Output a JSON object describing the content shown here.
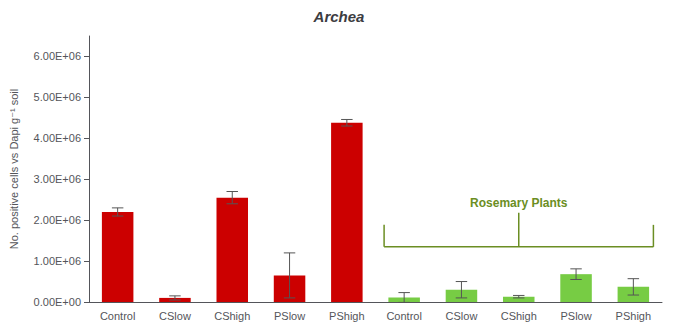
{
  "chart_data": {
    "type": "bar",
    "title": "Archea",
    "ylabel": "No. positive cells vs Dapi g⁻¹ soil",
    "categories": [
      "Control",
      "CSlow",
      "CShigh",
      "PSlow",
      "PShigh",
      "Control",
      "CSlow",
      "CShigh",
      "PSlow",
      "PShigh"
    ],
    "series": [
      {
        "color": "#CC0000",
        "values": [
          2200000,
          100000,
          2550000,
          650000,
          4380000,
          null,
          null,
          null,
          null,
          null
        ],
        "errors": [
          100000,
          50000,
          150000,
          550000,
          80000,
          null,
          null,
          null,
          null,
          null
        ]
      },
      {
        "color": "#77CC44",
        "values": [
          null,
          null,
          null,
          null,
          null,
          110000,
          300000,
          130000,
          680000,
          370000
        ],
        "errors": [
          null,
          null,
          null,
          null,
          null,
          120000,
          200000,
          30000,
          130000,
          200000
        ],
        "annotation": {
          "text": "Rosemary Plants",
          "color": "#6B8E23"
        }
      }
    ],
    "ylim": [
      0,
      6500000
    ],
    "yticks": [
      {
        "value": 0,
        "label": "0.00E+00"
      },
      {
        "value": 1000000,
        "label": "1.00E+06"
      },
      {
        "value": 2000000,
        "label": "2.00E+06"
      },
      {
        "value": 3000000,
        "label": "3.00E+06"
      },
      {
        "value": 4000000,
        "label": "4.00E+06"
      },
      {
        "value": 5000000,
        "label": "5.00E+06"
      },
      {
        "value": 6000000,
        "label": "6.00E+06"
      }
    ],
    "grid": false
  }
}
